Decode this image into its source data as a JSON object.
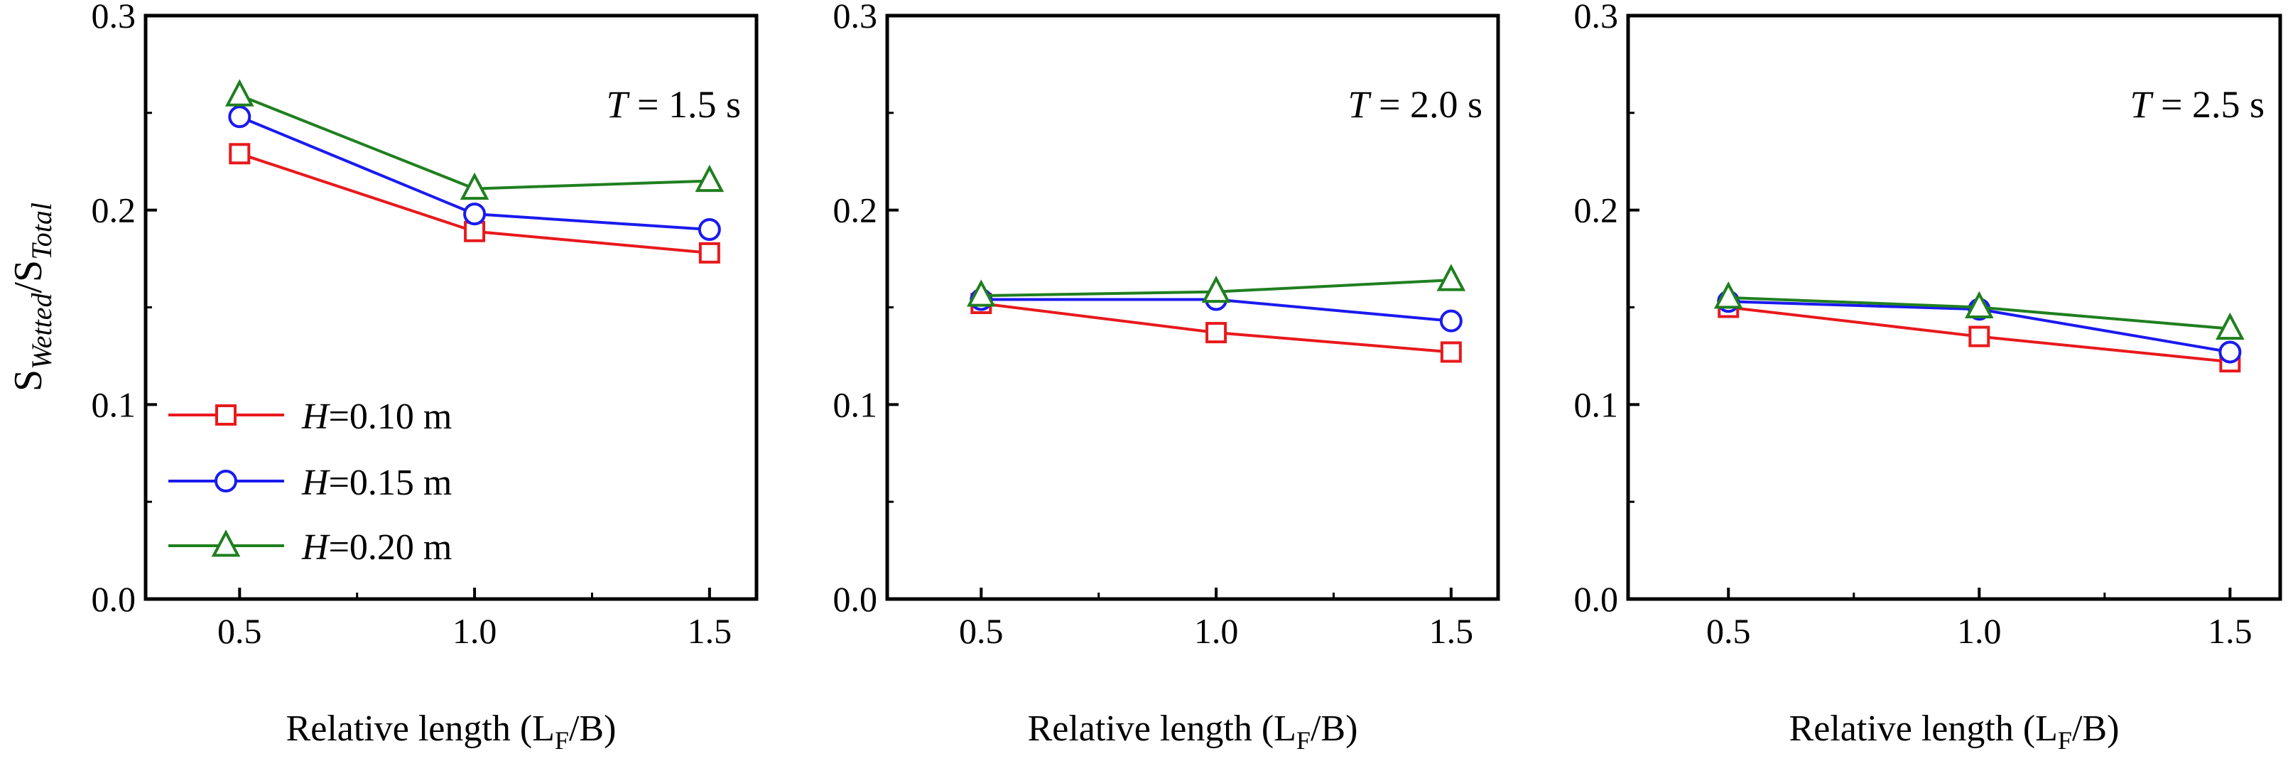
{
  "chart_data": [
    {
      "type": "line",
      "title": "",
      "annotation": {
        "var": "T",
        "value": " = 1.5 s"
      },
      "xlabel": {
        "main": "Relative length (L",
        "sub": "F",
        "tail": "/B)"
      },
      "ylabel": {
        "s1": "S",
        "sub1": "Wetted",
        "slash": "/",
        "s2": "S",
        "sub2": "Total"
      },
      "x": [
        0.5,
        1.0,
        1.5
      ],
      "xticks": [
        "0.5",
        "1.0",
        "1.5"
      ],
      "xlim": [
        0.3,
        1.6
      ],
      "ylim": [
        0.0,
        0.3
      ],
      "yticks": [
        "0.0",
        "0.1",
        "0.2",
        "0.3"
      ],
      "series": [
        {
          "name": "H=0.10 m",
          "values": [
            0.229,
            0.189,
            0.178
          ]
        },
        {
          "name": "H=0.15 m",
          "values": [
            0.248,
            0.198,
            0.19
          ]
        },
        {
          "name": "H=0.20 m",
          "values": [
            0.259,
            0.211,
            0.215
          ]
        }
      ]
    },
    {
      "type": "line",
      "title": "",
      "annotation": {
        "var": "T",
        "value": " = 2.0 s"
      },
      "xlabel": {
        "main": "Relative length (L",
        "sub": "F",
        "tail": "/B)"
      },
      "x": [
        0.5,
        1.0,
        1.5
      ],
      "xticks": [
        "0.5",
        "1.0",
        "1.5"
      ],
      "xlim": [
        0.3,
        1.6
      ],
      "ylim": [
        0.0,
        0.3
      ],
      "yticks": [
        "0.0",
        "0.1",
        "0.2",
        "0.3"
      ],
      "series": [
        {
          "name": "H=0.10 m",
          "values": [
            0.152,
            0.137,
            0.127
          ]
        },
        {
          "name": "H=0.15 m",
          "values": [
            0.154,
            0.154,
            0.143
          ]
        },
        {
          "name": "H=0.20 m",
          "values": [
            0.156,
            0.158,
            0.164
          ]
        }
      ]
    },
    {
      "type": "line",
      "title": "",
      "annotation": {
        "var": "T",
        "value": " = 2.5 s"
      },
      "xlabel": {
        "main": "Relative length (L",
        "sub": "F",
        "tail": "/B)"
      },
      "x": [
        0.5,
        1.0,
        1.5
      ],
      "xticks": [
        "0.5",
        "1.0",
        "1.5"
      ],
      "xlim": [
        0.3,
        1.6
      ],
      "ylim": [
        0.0,
        0.3
      ],
      "yticks": [
        "0.0",
        "0.1",
        "0.2",
        "0.3"
      ],
      "series": [
        {
          "name": "H=0.10 m",
          "values": [
            0.15,
            0.135,
            0.122
          ]
        },
        {
          "name": "H=0.15 m",
          "values": [
            0.153,
            0.149,
            0.127
          ]
        },
        {
          "name": "H=0.20 m",
          "values": [
            0.155,
            0.15,
            0.139
          ]
        }
      ]
    }
  ],
  "legend": {
    "placement": "lower-left",
    "entries": [
      {
        "var": "H",
        "text": "=0.10 m",
        "marker": "square",
        "color": "#e8191c"
      },
      {
        "var": "H",
        "text": "=0.15 m",
        "marker": "circle",
        "color": "#1a1aef"
      },
      {
        "var": "H",
        "text": "=0.20 m",
        "marker": "triangle",
        "color": "#1f7f1f"
      }
    ]
  },
  "colors": [
    "#e8191c",
    "#1a1aef",
    "#1f7f1f"
  ],
  "markers": [
    "square",
    "circle",
    "triangle"
  ]
}
